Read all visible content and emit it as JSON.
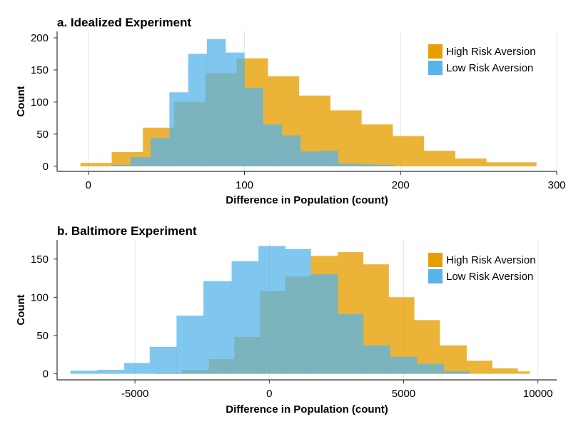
{
  "colors": {
    "high": "#E69F00",
    "low": "#56B4E9",
    "grid": "#e6e6e6",
    "axis": "#333333",
    "text": "#000000"
  },
  "chart_data": [
    {
      "type": "bar",
      "title": "a. Idealized Experiment",
      "xlabel": "Difference in Population (count)",
      "ylabel": "Count",
      "xlim": [
        -20,
        300
      ],
      "ylim": [
        -8,
        210
      ],
      "xticks": [
        0,
        100,
        200,
        300
      ],
      "yticks": [
        0,
        50,
        100,
        150,
        200
      ],
      "grid": true,
      "legend": "top-right",
      "series": [
        {
          "name": "High Risk Aversion",
          "bins": [
            [
              -5,
              15,
              5
            ],
            [
              15,
              35,
              22
            ],
            [
              35,
              55,
              60
            ],
            [
              55,
              75,
              100
            ],
            [
              75,
              95,
              145
            ],
            [
              95,
              115,
              168
            ],
            [
              115,
              135,
              140
            ],
            [
              135,
              155,
              110
            ],
            [
              155,
              175,
              87
            ],
            [
              175,
              195,
              65
            ],
            [
              195,
              215,
              47
            ],
            [
              215,
              235,
              24
            ],
            [
              235,
              255,
              12
            ],
            [
              255,
              275,
              6
            ],
            [
              275,
              287,
              6
            ]
          ]
        },
        {
          "name": "Low Risk Aversion",
          "bins": [
            [
              15,
              27,
              2
            ],
            [
              27,
              40,
              14
            ],
            [
              40,
              52,
              44
            ],
            [
              52,
              64,
              115
            ],
            [
              64,
              76,
              175
            ],
            [
              76,
              88,
              198
            ],
            [
              88,
              100,
              177
            ],
            [
              100,
              112,
              122
            ],
            [
              112,
              124,
              65
            ],
            [
              124,
              136,
              48
            ],
            [
              136,
              148,
              23
            ],
            [
              148,
              160,
              24
            ],
            [
              160,
              172,
              4
            ],
            [
              172,
              184,
              3
            ],
            [
              184,
              196,
              2
            ]
          ]
        }
      ]
    },
    {
      "type": "bar",
      "title": "b. Baltimore Experiment",
      "xlabel": "Difference in Population (count)",
      "ylabel": "Count",
      "xlim": [
        -7900,
        10700
      ],
      "ylim": [
        -8,
        175
      ],
      "xticks": [
        -5000,
        0,
        5000,
        10000
      ],
      "xticklabels": [
        "-5000",
        "0",
        "5000",
        "10000"
      ],
      "yticks": [
        0,
        50,
        100,
        150
      ],
      "grid": true,
      "legend": "top-right",
      "series": [
        {
          "name": "High Risk Aversion",
          "bins": [
            [
              -4200,
              -3250,
              1
            ],
            [
              -3250,
              -2250,
              5
            ],
            [
              -2250,
              -1300,
              19
            ],
            [
              -1300,
              -350,
              48
            ],
            [
              -350,
              600,
              108
            ],
            [
              600,
              1550,
              127
            ],
            [
              1550,
              2550,
              154
            ],
            [
              2550,
              3500,
              159
            ],
            [
              3500,
              4450,
              143
            ],
            [
              4450,
              5400,
              100
            ],
            [
              5400,
              6350,
              70
            ],
            [
              6350,
              7350,
              37
            ],
            [
              7350,
              8300,
              17
            ],
            [
              8300,
              9250,
              7
            ],
            [
              9250,
              9700,
              3
            ]
          ]
        },
        {
          "name": "Low Risk Aversion",
          "bins": [
            [
              -7400,
              -6400,
              4
            ],
            [
              -6400,
              -5400,
              5
            ],
            [
              -5400,
              -4450,
              14
            ],
            [
              -4450,
              -3450,
              35
            ],
            [
              -3450,
              -2450,
              76
            ],
            [
              -2450,
              -1400,
              121
            ],
            [
              -1400,
              -400,
              147
            ],
            [
              -400,
              600,
              167
            ],
            [
              600,
              1550,
              163
            ],
            [
              1550,
              2550,
              130
            ],
            [
              2550,
              3500,
              78
            ],
            [
              3500,
              4500,
              37
            ],
            [
              4500,
              5500,
              22
            ],
            [
              5500,
              6500,
              13
            ],
            [
              6500,
              7450,
              3
            ]
          ]
        }
      ]
    }
  ]
}
